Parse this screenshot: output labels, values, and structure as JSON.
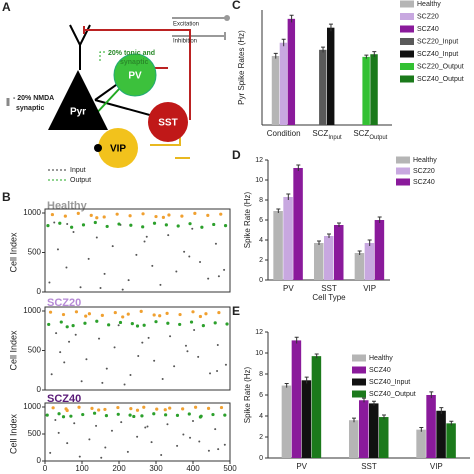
{
  "panel_letters": [
    "A",
    "B",
    "C",
    "D",
    "E"
  ],
  "diagram": {
    "nodes": [
      "Pyr",
      "PV",
      "SST",
      "VIP"
    ],
    "legend_top": [
      "Excitation",
      "Inhibition"
    ],
    "legend_bottom": [
      "Input",
      "Output"
    ],
    "annotation_pv": [
      "20% tonic and",
      "synaptic"
    ],
    "annotation_nmda": [
      "- 20% NMDA",
      "synaptic"
    ]
  },
  "chart_data": [
    {
      "type": "bar",
      "ylabel": "Pyr Spike Rates (Hz)",
      "categories": [
        "Condition",
        "SCZ",
        "SCZ"
      ],
      "category_subscripts": [
        null,
        "Input",
        "Output"
      ],
      "ylim": [
        0,
        1.3
      ],
      "legend": "outside right",
      "series": [
        {
          "name": "Healthy",
          "color": "#b5b5b5",
          "values": [
            0.78,
            null,
            null
          ],
          "errors": [
            0.03,
            null,
            null
          ]
        },
        {
          "name": "SCZ20",
          "color": "#c8a8e0",
          "values": [
            0.93,
            null,
            null
          ],
          "errors": [
            0.04,
            null,
            null
          ]
        },
        {
          "name": "SCZ40",
          "color": "#8a1a9b",
          "values": [
            1.2,
            null,
            null
          ],
          "errors": [
            0.04,
            null,
            null
          ]
        },
        {
          "name": "SCZ20_Input",
          "color": "#5a5a5a",
          "values": [
            null,
            0.85,
            null
          ],
          "errors": [
            null,
            0.03,
            null
          ]
        },
        {
          "name": "SCZ40_Input",
          "color": "#111111",
          "values": [
            null,
            1.1,
            null
          ],
          "errors": [
            null,
            0.04,
            null
          ]
        },
        {
          "name": "SCZ20_Output",
          "color": "#33c133",
          "values": [
            null,
            null,
            0.77
          ],
          "errors": [
            null,
            null,
            0.02
          ]
        },
        {
          "name": "SCZ40_Output",
          "color": "#1b7a1b",
          "values": [
            null,
            null,
            0.8
          ],
          "errors": [
            null,
            null,
            0.03
          ]
        }
      ]
    },
    {
      "type": "bar",
      "ylabel": "Spike Rate (Hz)",
      "xlabel": "Cell Type",
      "categories": [
        "PV",
        "SST",
        "VIP"
      ],
      "ylim": [
        0,
        12
      ],
      "yticks": [
        0,
        2,
        4,
        6,
        8,
        10,
        12
      ],
      "legend": "outside right",
      "series": [
        {
          "name": "Healthy",
          "color": "#b5b5b5",
          "values": [
            6.9,
            3.7,
            2.7
          ],
          "errors": [
            0.2,
            0.2,
            0.2
          ]
        },
        {
          "name": "SCZ20",
          "color": "#c8a8e0",
          "values": [
            8.3,
            4.4,
            3.7
          ],
          "errors": [
            0.3,
            0.2,
            0.3
          ]
        },
        {
          "name": "SCZ40",
          "color": "#8a1a9b",
          "values": [
            11.2,
            5.5,
            6.0
          ],
          "errors": [
            0.3,
            0.2,
            0.3
          ]
        }
      ]
    },
    {
      "type": "bar",
      "ylabel": "Spike Rate (Hz)",
      "categories": [
        "PV",
        "SST",
        "VIP"
      ],
      "ylim": [
        0,
        12
      ],
      "yticks": [
        0,
        2,
        4,
        6,
        8,
        10,
        12
      ],
      "legend": "upper right",
      "series": [
        {
          "name": "Healthy",
          "color": "#b5b5b5",
          "values": [
            6.9,
            3.6,
            2.7
          ],
          "errors": [
            0.2,
            0.2,
            0.2
          ]
        },
        {
          "name": "SCZ40",
          "color": "#8a1a9b",
          "values": [
            11.2,
            5.5,
            6.0
          ],
          "errors": [
            0.3,
            0.2,
            0.3
          ]
        },
        {
          "name": "SCZ40_Input",
          "color": "#111111",
          "values": [
            7.4,
            5.2,
            4.5
          ],
          "errors": [
            0.3,
            0.2,
            0.3
          ]
        },
        {
          "name": "SCZ40_Output",
          "color": "#1b7a1b",
          "values": [
            9.7,
            3.9,
            3.3
          ],
          "errors": [
            0.2,
            0.2,
            0.2
          ]
        }
      ]
    },
    {
      "type": "scatter",
      "title": "Healthy",
      "title_color": "#9a9a9a",
      "ylabel": "Cell Index",
      "xlim": [
        0,
        500
      ],
      "ylim": [
        0,
        1000
      ],
      "yticks": [
        0,
        500,
        1000
      ],
      "series": [
        {
          "color": "#555555",
          "x": [
            12,
            35,
            58,
            77,
            96,
            118,
            140,
            161,
            183,
            204,
            226,
            247,
            269,
            290,
            312,
            333,
            355,
            376,
            398,
            419,
            441,
            462,
            484,
            25,
            150,
            275,
            390,
            470,
            60,
            210
          ],
          "values": [
            120,
            540,
            310,
            760,
            60,
            420,
            690,
            230,
            580,
            850,
            150,
            470,
            640,
            330,
            90,
            720,
            260,
            510,
            800,
            380,
            170,
            610,
            280,
            880,
            50,
            700,
            450,
            200,
            860,
            30
          ]
        },
        {
          "color": "#2ca02c",
          "x": [
            8,
            40,
            72,
            104,
            136,
            168,
            200,
            232,
            264,
            296,
            328,
            360,
            392,
            424,
            456,
            488
          ],
          "values": [
            840,
            870,
            820,
            850,
            880,
            830,
            860,
            845,
            825,
            870,
            850,
            835,
            865,
            820,
            855,
            840
          ]
        },
        {
          "color": "#f0a030",
          "x": [
            20,
            55,
            90,
            125,
            160,
            195,
            230,
            265,
            300,
            335,
            370,
            405,
            440,
            475,
            140,
            320
          ],
          "values": [
            980,
            960,
            995,
            970,
            950,
            985,
            965,
            990,
            955,
            975,
            960,
            995,
            970,
            985,
            940,
            945
          ]
        }
      ]
    },
    {
      "type": "scatter",
      "title": "SCZ20",
      "title_color": "#b68ad6",
      "ylabel": "Cell Index",
      "xlim": [
        0,
        500
      ],
      "ylim": [
        0,
        1000
      ],
      "yticks": [
        0,
        500,
        1000
      ],
      "series": [
        {
          "color": "#555555",
          "x": [
            18,
            41,
            52,
            83,
            99,
            112,
            146,
            167,
            188,
            199,
            231,
            252,
            263,
            295,
            318,
            338,
            349,
            381,
            403,
            414,
            446,
            467,
            489,
            30,
            155,
            280,
            385,
            465,
            65,
            215
          ],
          "values": [
            200,
            480,
            350,
            700,
            110,
            390,
            650,
            270,
            540,
            820,
            190,
            430,
            600,
            370,
            140,
            680,
            300,
            560,
            760,
            420,
            210,
            570,
            320,
            720,
            90,
            660,
            490,
            240,
            610,
            70
          ]
        },
        {
          "color": "#2ca02c",
          "x": [
            10,
            44,
            76,
            108,
            140,
            172,
            204,
            236,
            268,
            300,
            332,
            364,
            396,
            428,
            460,
            492,
            60,
            250
          ],
          "values": [
            830,
            860,
            815,
            845,
            870,
            825,
            855,
            840,
            820,
            865,
            845,
            830,
            860,
            815,
            850,
            835,
            800,
            810
          ]
        },
        {
          "color": "#f0a030",
          "x": [
            15,
            50,
            85,
            120,
            155,
            190,
            225,
            260,
            295,
            330,
            365,
            400,
            435,
            470,
            110,
            310,
            210,
            420
          ],
          "values": [
            985,
            955,
            990,
            965,
            945,
            980,
            960,
            995,
            950,
            970,
            955,
            990,
            965,
            980,
            935,
            940,
            925,
            930
          ]
        }
      ]
    },
    {
      "type": "scatter",
      "title": "SCZ40",
      "title_color": "#5a1a78",
      "ylabel": "Cell Index",
      "xlim": [
        0,
        500
      ],
      "ylim": [
        0,
        1000
      ],
      "yticks": [
        0,
        500,
        1000
      ],
      "xticks": [
        0,
        100,
        200,
        300,
        400,
        500
      ],
      "series": [
        {
          "color": "#555555",
          "x": [
            14,
            37,
            60,
            79,
            94,
            120,
            138,
            163,
            181,
            206,
            224,
            249,
            271,
            288,
            314,
            331,
            357,
            374,
            400,
            417,
            443,
            460,
            486,
            28,
            152,
            277,
            392,
            468
          ],
          "values": [
            150,
            520,
            330,
            700,
            80,
            400,
            650,
            250,
            560,
            720,
            170,
            450,
            620,
            350,
            110,
            680,
            280,
            490,
            740,
            360,
            190,
            590,
            300,
            760,
            60,
            640,
            430,
            220
          ]
        },
        {
          "color": "#2ca02c",
          "x": [
            6,
            38,
            70,
            102,
            134,
            166,
            198,
            230,
            262,
            294,
            326,
            358,
            390,
            422,
            454,
            486,
            50,
            240,
            420
          ],
          "values": [
            850,
            875,
            830,
            860,
            885,
            840,
            865,
            850,
            835,
            875,
            855,
            845,
            870,
            830,
            860,
            850,
            820,
            825,
            815
          ]
        },
        {
          "color": "#f0a030",
          "x": [
            22,
            57,
            92,
            127,
            162,
            197,
            232,
            267,
            302,
            337,
            372,
            407,
            442,
            477,
            145,
            325,
            60,
            250
          ],
          "values": [
            985,
            965,
            995,
            975,
            955,
            990,
            970,
            995,
            960,
            980,
            965,
            995,
            975,
            990,
            945,
            950,
            935,
            940
          ]
        }
      ]
    }
  ]
}
